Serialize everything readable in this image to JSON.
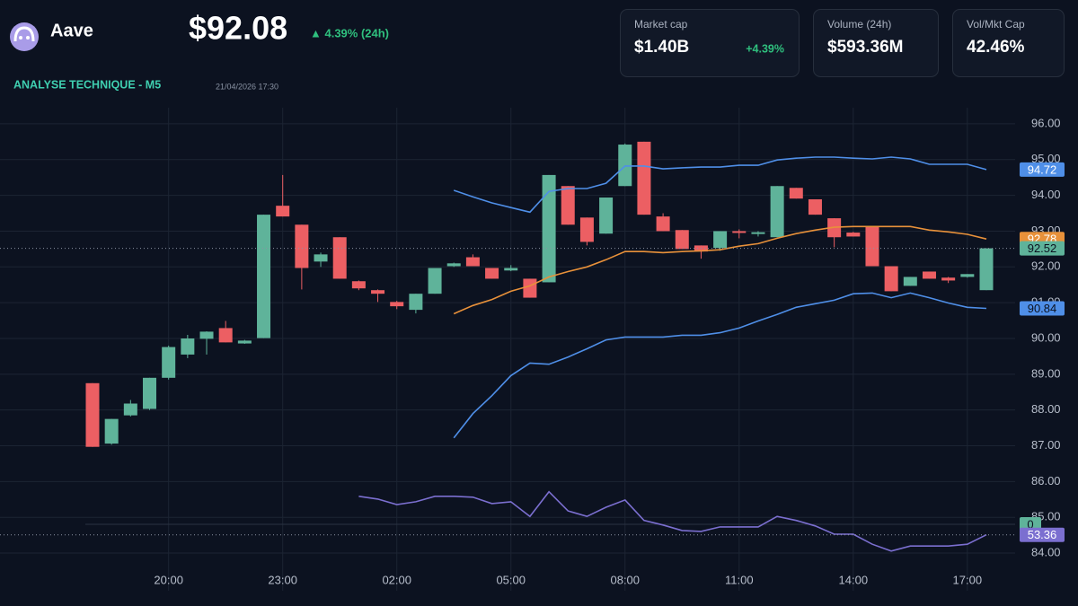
{
  "header": {
    "name": "Aave",
    "price": "$92.08",
    "change": "▲ 4.39% (24h)",
    "section": "ANALYSE TECHNIQUE - M5",
    "timestamp": "21/04/2026 17:30",
    "cards": [
      {
        "label": "Market cap",
        "value": "$1.40B",
        "change": "+4.39%"
      },
      {
        "label": "Volume (24h)",
        "value": "$593.36M"
      },
      {
        "label": "Vol/Mkt Cap",
        "value": "42.46%"
      }
    ]
  },
  "chart_data": {
    "type": "candlestick",
    "grid": true,
    "up_color": "#5fb39a",
    "down_color": "#ec5f63",
    "categories": [
      null,
      null,
      null,
      null,
      "20:00",
      null,
      null,
      null,
      null,
      null,
      "23:00",
      null,
      null,
      null,
      null,
      null,
      "02:00",
      null,
      null,
      null,
      null,
      null,
      "05:00",
      null,
      null,
      null,
      null,
      null,
      "08:00",
      null,
      null,
      null,
      null,
      null,
      "11:00",
      null,
      null,
      null,
      null,
      null,
      "14:00",
      null,
      null,
      null,
      null,
      null,
      "17:00",
      null
    ],
    "open": [
      88.75,
      87.06,
      87.85,
      88.03,
      88.9,
      89.55,
      89.99,
      90.29,
      89.86,
      90.01,
      93.71,
      93.18,
      92.15,
      92.83,
      91.6,
      91.35,
      91.02,
      90.8,
      91.25,
      92.02,
      92.27,
      91.97,
      91.9,
      91.67,
      91.57,
      94.26,
      93.38,
      92.93,
      94.26,
      95.5,
      93.41,
      93.03,
      92.6,
      92.53,
      93.0,
      92.92,
      92.83,
      94.21,
      93.89,
      93.36,
      92.96,
      93.13,
      92.02,
      91.47,
      91.87,
      91.7,
      91.72,
      91.35
    ],
    "high": [
      88.75,
      87.75,
      88.28,
      88.9,
      89.8,
      90.1,
      90.2,
      90.49,
      89.96,
      93.46,
      94.57,
      93.18,
      92.4,
      92.83,
      91.62,
      91.37,
      91.05,
      91.25,
      91.97,
      92.12,
      92.35,
      91.97,
      92.05,
      91.67,
      94.57,
      94.26,
      93.38,
      93.94,
      95.45,
      95.5,
      93.5,
      93.03,
      92.6,
      93.0,
      93.05,
      93.0,
      94.26,
      94.21,
      93.89,
      93.36,
      92.98,
      93.13,
      92.02,
      91.72,
      91.87,
      91.72,
      91.8,
      92.52
    ],
    "low": [
      86.97,
      87.03,
      87.82,
      88.0,
      88.85,
      89.45,
      89.55,
      89.89,
      89.85,
      90.01,
      93.41,
      91.37,
      92.0,
      91.67,
      91.35,
      91.02,
      90.82,
      90.7,
      91.25,
      92.0,
      92.02,
      91.67,
      91.88,
      91.14,
      91.57,
      93.18,
      92.6,
      92.93,
      94.26,
      93.46,
      93.0,
      92.5,
      92.23,
      92.45,
      92.8,
      92.85,
      92.83,
      93.91,
      93.46,
      92.55,
      92.85,
      92.02,
      91.32,
      91.47,
      91.67,
      91.55,
      91.7,
      91.35
    ],
    "close": [
      86.97,
      87.75,
      88.18,
      88.9,
      89.76,
      90.0,
      90.19,
      89.89,
      89.94,
      93.46,
      93.41,
      91.97,
      92.35,
      91.67,
      91.4,
      91.25,
      90.9,
      91.25,
      91.97,
      92.1,
      92.02,
      91.67,
      91.97,
      91.14,
      94.57,
      93.18,
      92.7,
      93.94,
      95.42,
      93.46,
      93.0,
      92.5,
      92.43,
      93.0,
      92.95,
      92.97,
      94.26,
      93.91,
      93.46,
      92.83,
      92.85,
      92.02,
      91.32,
      91.72,
      91.67,
      91.62,
      91.8,
      92.52
    ],
    "series": [
      {
        "color": "#4f8fe8",
        "values": [
          null,
          null,
          null,
          null,
          null,
          null,
          null,
          null,
          null,
          null,
          null,
          null,
          null,
          null,
          null,
          null,
          null,
          null,
          null,
          94.14,
          93.96,
          93.79,
          93.66,
          93.53,
          94.11,
          94.19,
          94.19,
          94.34,
          94.82,
          94.82,
          94.74,
          94.77,
          94.79,
          94.79,
          94.84,
          94.84,
          94.99,
          95.04,
          95.07,
          95.07,
          95.04,
          95.02,
          95.07,
          95.02,
          94.87,
          94.87,
          94.87,
          94.72
        ]
      },
      {
        "color": "#e8913a",
        "values": [
          null,
          null,
          null,
          null,
          null,
          null,
          null,
          null,
          null,
          null,
          null,
          null,
          null,
          null,
          null,
          null,
          null,
          null,
          null,
          90.69,
          90.92,
          91.09,
          91.32,
          91.47,
          91.72,
          91.87,
          92.0,
          92.2,
          92.43,
          92.43,
          92.4,
          92.43,
          92.45,
          92.48,
          92.58,
          92.65,
          92.8,
          92.93,
          93.03,
          93.11,
          93.13,
          93.13,
          93.13,
          93.13,
          93.03,
          92.98,
          92.91,
          92.78
        ]
      },
      {
        "color": "#4f8fe8",
        "values": [
          null,
          null,
          null,
          null,
          null,
          null,
          null,
          null,
          null,
          null,
          null,
          null,
          null,
          null,
          null,
          null,
          null,
          null,
          null,
          87.22,
          87.9,
          88.4,
          88.96,
          89.31,
          89.28,
          89.48,
          89.71,
          89.96,
          90.04,
          90.04,
          90.04,
          90.09,
          90.09,
          90.16,
          90.29,
          90.49,
          90.67,
          90.87,
          90.97,
          91.07,
          91.25,
          91.27,
          91.14,
          91.27,
          91.14,
          90.99,
          90.87,
          90.84
        ]
      },
      {
        "color": "#7b6fd0",
        "axis": "y2",
        "values": [
          null,
          null,
          null,
          null,
          null,
          null,
          null,
          null,
          null,
          null,
          null,
          null,
          null,
          null,
          61.8,
          61.2,
          60.0,
          60.6,
          61.8,
          61.8,
          61.6,
          60.2,
          60.6,
          57.4,
          62.8,
          58.6,
          57.4,
          59.4,
          61.0,
          56.5,
          55.5,
          54.3,
          54.1,
          55.1,
          55.1,
          55.1,
          57.4,
          56.5,
          55.3,
          53.5,
          53.5,
          51.3,
          49.8,
          50.9,
          50.9,
          50.9,
          51.3,
          53.36
        ]
      }
    ],
    "zero_marker": 0,
    "ylim": [
      83.7,
      96.45
    ],
    "yticks": [
      {
        "value": 84,
        "label": "84.00"
      },
      {
        "value": 85,
        "label": "85.00"
      },
      {
        "value": 86,
        "label": "86.00"
      },
      {
        "value": 87,
        "label": "87.00"
      },
      {
        "value": 88,
        "label": "88.00"
      },
      {
        "value": 89,
        "label": "89.00"
      },
      {
        "value": 90,
        "label": "90.00"
      },
      {
        "value": 91,
        "label": "91.00"
      },
      {
        "value": 92,
        "label": "92.00"
      },
      {
        "value": 93,
        "label": "93.00"
      },
      {
        "value": 94,
        "label": "94.00"
      },
      {
        "value": 95,
        "label": "95.00"
      },
      {
        "value": 96,
        "label": "96.00"
      }
    ],
    "y2lim": [
      47,
      147
    ]
  }
}
